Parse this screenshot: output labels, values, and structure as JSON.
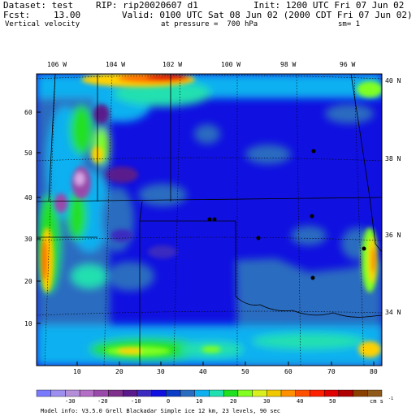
{
  "header": {
    "dataset": "Dataset: test",
    "rip": "RIP: rip20020607 d1",
    "init": "Init: 1200 UTC Fri 07 Jun 02",
    "fcst_label": "Fcst:",
    "fcst_value": "13.00",
    "valid": "Valid: 0100 UTC Sat 08 Jun 02 (2000 CDT Fri 07 Jun 02)",
    "field": "Vertical velocity",
    "pressure": "at pressure =  700 hPa",
    "sm": "sm= 1"
  },
  "map": {
    "lon_labels": [
      "106 W",
      "104 W",
      "102 W",
      "100 W",
      "98 W",
      "96 W"
    ],
    "lat_labels": [
      "40 N",
      "38 N",
      "36 N",
      "34 N"
    ],
    "y_ticks": [
      "60",
      "50",
      "40",
      "30",
      "20",
      "10"
    ],
    "x_ticks": [
      "10",
      "20",
      "30",
      "40",
      "50",
      "60",
      "70",
      "80"
    ]
  },
  "colorbar": {
    "labels": [
      "-30",
      "-20",
      "-10",
      "0",
      "10",
      "20",
      "30",
      "40",
      "50"
    ],
    "units": "cm s",
    "units_exp": "-1",
    "colors": [
      "#7a7aff",
      "#9d8ff0",
      "#b48ed8",
      "#b46ec8",
      "#9a4aaa",
      "#80308c",
      "#5a1a8c",
      "#3a2ac0",
      "#1010e0",
      "#0a3cc8",
      "#2a6cc0",
      "#10b0f0",
      "#20e0b0",
      "#20e020",
      "#80ff20",
      "#d8f020",
      "#f0c800",
      "#ff9000",
      "#ff5000",
      "#ff2000",
      "#e00000",
      "#b00000",
      "#8a4000",
      "#905a1a"
    ],
    "model_info": "Model info: V3.5.0   Grell     Blackadar  Simple ice   12 km,  23 levels,   90 sec"
  }
}
